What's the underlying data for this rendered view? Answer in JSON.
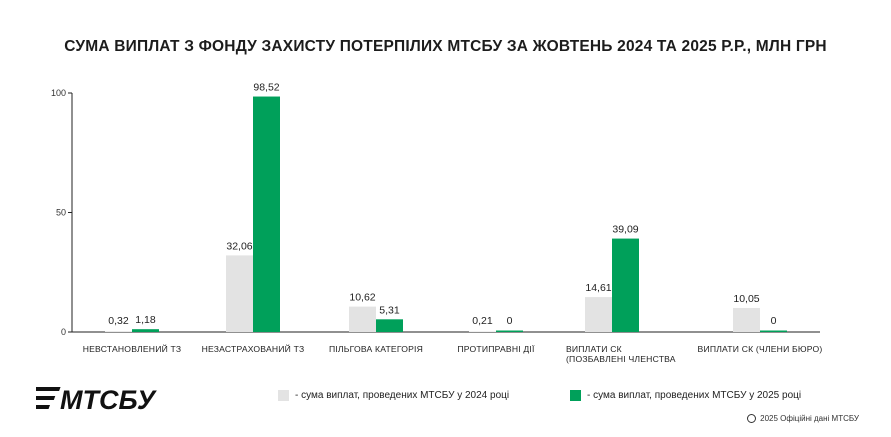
{
  "title": "СУМА ВИПЛАТ З ФОНДУ ЗАХИСТУ ПОТЕРПІЛИХ МТСБУ ЗА ЖОВТЕНЬ 2024 ТА 2025 Р.Р., МЛН ГРН",
  "logo_text": "МТСБУ",
  "colors": {
    "series_2024": "#e3e3e3",
    "series_2025": "#00a05a",
    "axis": "#222222"
  },
  "legend": {
    "item_2024": "- сума виплат, проведених МТСБУ у 2024 році",
    "item_2025": "- сума виплат, проведених МТСБУ у 2025 році"
  },
  "footer": "2025 Офіційні дані МТСБУ",
  "chart_data": {
    "type": "bar",
    "categories": [
      [
        "НЕВСТАНОВЛЕНИЙ ТЗ"
      ],
      [
        "НЕЗАСТРАХОВАНИЙ ТЗ"
      ],
      [
        "ПІЛЬГОВА КАТЕГОРІЯ"
      ],
      [
        "ПРОТИПРАВНІ ДІЇ"
      ],
      [
        "ВИПЛАТИ СК",
        "(ПОЗБАВЛЕНІ ЧЛЕНСТВА"
      ],
      [
        "ВИПЛАТИ СК (ЧЛЕНИ БЮРО)"
      ]
    ],
    "series": [
      {
        "values": [
          0.32,
          32.06,
          10.62,
          0.21,
          14.61,
          10.05
        ],
        "labels": [
          "0,32",
          "32,06",
          "10,62",
          "0,21",
          "14,61",
          "10,05"
        ]
      },
      {
        "values": [
          1.18,
          98.52,
          5.31,
          0,
          39.09,
          0
        ],
        "labels": [
          "1,18",
          "98,52",
          "5,31",
          "0",
          "39,09",
          "0"
        ]
      }
    ],
    "yticks": [
      "0",
      "50",
      "100"
    ],
    "ylim": [
      0,
      100
    ],
    "legend_position": "bottom",
    "grid": false
  }
}
